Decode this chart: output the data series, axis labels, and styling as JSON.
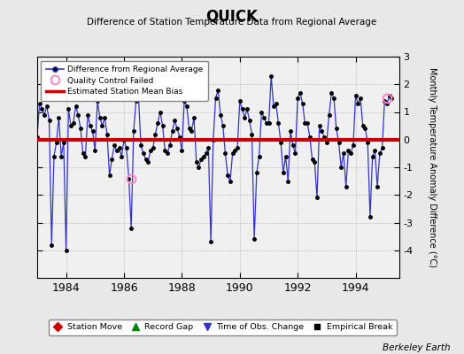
{
  "title": "QUICK",
  "subtitle": "Difference of Station Temperature Data from Regional Average",
  "ylabel": "Monthly Temperature Anomaly Difference (°C)",
  "xlabel_ticks": [
    1984,
    1986,
    1988,
    1990,
    1992,
    1994
  ],
  "ylim": [
    -5,
    3
  ],
  "yticks": [
    -4,
    -3,
    -2,
    -1,
    0,
    1,
    2,
    3
  ],
  "bias_value": 0.0,
  "background_color": "#e8e8e8",
  "plot_bg_color": "#f0f0f0",
  "line_color": "#3333cc",
  "marker_color": "#000000",
  "bias_color": "#cc0000",
  "qc_fail_color": "#ff88cc",
  "berkeley_earth_text": "Berkeley Earth",
  "t_values": [
    1983.0,
    1983.083,
    1983.167,
    1983.25,
    1983.333,
    1983.417,
    1983.5,
    1983.583,
    1983.667,
    1983.75,
    1983.833,
    1983.917,
    1984.0,
    1984.083,
    1984.167,
    1984.25,
    1984.333,
    1984.417,
    1984.5,
    1984.583,
    1984.667,
    1984.75,
    1984.833,
    1984.917,
    1985.0,
    1985.083,
    1985.167,
    1985.25,
    1985.333,
    1985.417,
    1985.5,
    1985.583,
    1985.667,
    1985.75,
    1985.833,
    1985.917,
    1986.0,
    1986.083,
    1986.167,
    1986.25,
    1986.333,
    1986.417,
    1986.5,
    1986.583,
    1986.667,
    1986.75,
    1986.833,
    1986.917,
    1987.0,
    1987.083,
    1987.167,
    1987.25,
    1987.333,
    1987.417,
    1987.5,
    1987.583,
    1987.667,
    1987.75,
    1987.833,
    1987.917,
    1988.0,
    1988.083,
    1988.167,
    1988.25,
    1988.333,
    1988.417,
    1988.5,
    1988.583,
    1988.667,
    1988.75,
    1988.833,
    1988.917,
    1989.0,
    1989.083,
    1989.167,
    1989.25,
    1989.333,
    1989.417,
    1989.5,
    1989.583,
    1989.667,
    1989.75,
    1989.833,
    1989.917,
    1990.0,
    1990.083,
    1990.167,
    1990.25,
    1990.333,
    1990.417,
    1990.5,
    1990.583,
    1990.667,
    1990.75,
    1990.833,
    1990.917,
    1991.0,
    1991.083,
    1991.167,
    1991.25,
    1991.333,
    1991.417,
    1991.5,
    1991.583,
    1991.667,
    1991.75,
    1991.833,
    1991.917,
    1992.0,
    1992.083,
    1992.167,
    1992.25,
    1992.333,
    1992.417,
    1992.5,
    1992.583,
    1992.667,
    1992.75,
    1992.833,
    1992.917,
    1993.0,
    1993.083,
    1993.167,
    1993.25,
    1993.333,
    1993.417,
    1993.5,
    1993.583,
    1993.667,
    1993.75,
    1993.833,
    1993.917,
    1994.0,
    1994.083,
    1994.167,
    1994.25,
    1994.333,
    1994.417,
    1994.5,
    1994.583,
    1994.667,
    1994.75,
    1994.833,
    1994.917,
    1995.0,
    1995.083,
    1995.167,
    1995.25
  ],
  "y_values": [
    0.1,
    1.3,
    1.1,
    0.9,
    1.2,
    0.7,
    -3.8,
    -0.6,
    -0.1,
    0.8,
    -0.6,
    -0.1,
    -4.0,
    1.1,
    0.5,
    0.6,
    1.2,
    0.9,
    0.4,
    -0.5,
    -0.6,
    0.9,
    0.5,
    0.3,
    -0.4,
    1.4,
    0.8,
    0.5,
    0.8,
    0.2,
    -1.3,
    -0.7,
    -0.2,
    -0.4,
    -0.3,
    -0.6,
    0.0,
    -0.3,
    -1.4,
    -3.2,
    0.3,
    1.4,
    1.6,
    -0.2,
    -0.5,
    -0.7,
    -0.8,
    -0.4,
    -0.3,
    0.2,
    0.6,
    1.0,
    0.5,
    -0.4,
    -0.5,
    -0.2,
    0.3,
    0.7,
    0.4,
    0.1,
    -0.4,
    1.4,
    1.2,
    0.4,
    0.3,
    0.8,
    -0.8,
    -1.0,
    -0.7,
    -0.6,
    -0.5,
    -0.3,
    -3.7,
    0.0,
    1.5,
    1.8,
    0.9,
    0.5,
    -0.5,
    -1.3,
    -1.5,
    -0.5,
    -0.4,
    -0.3,
    1.4,
    1.1,
    0.8,
    1.1,
    0.7,
    0.2,
    -3.6,
    -1.2,
    -0.6,
    1.0,
    0.8,
    0.6,
    0.6,
    2.3,
    1.2,
    1.3,
    0.6,
    -0.1,
    -1.2,
    -0.6,
    -1.5,
    0.3,
    -0.2,
    -0.5,
    1.5,
    1.7,
    1.3,
    0.6,
    0.6,
    0.1,
    -0.7,
    -0.8,
    -2.1,
    0.5,
    0.3,
    0.1,
    -0.1,
    0.9,
    1.7,
    1.5,
    0.4,
    -0.1,
    -1.0,
    -0.5,
    -1.7,
    -0.4,
    -0.5,
    -0.2,
    1.6,
    1.3,
    1.5,
    0.5,
    0.4,
    -0.1,
    -2.8,
    -0.6,
    -0.4,
    -1.7,
    -0.5,
    -0.3,
    1.4,
    1.3,
    1.6,
    1.5
  ],
  "qc_fail_times": [
    1986.25,
    1995.083
  ],
  "qc_fail_values": [
    -1.4,
    1.5
  ],
  "xlim": [
    1983.0,
    1995.5
  ]
}
